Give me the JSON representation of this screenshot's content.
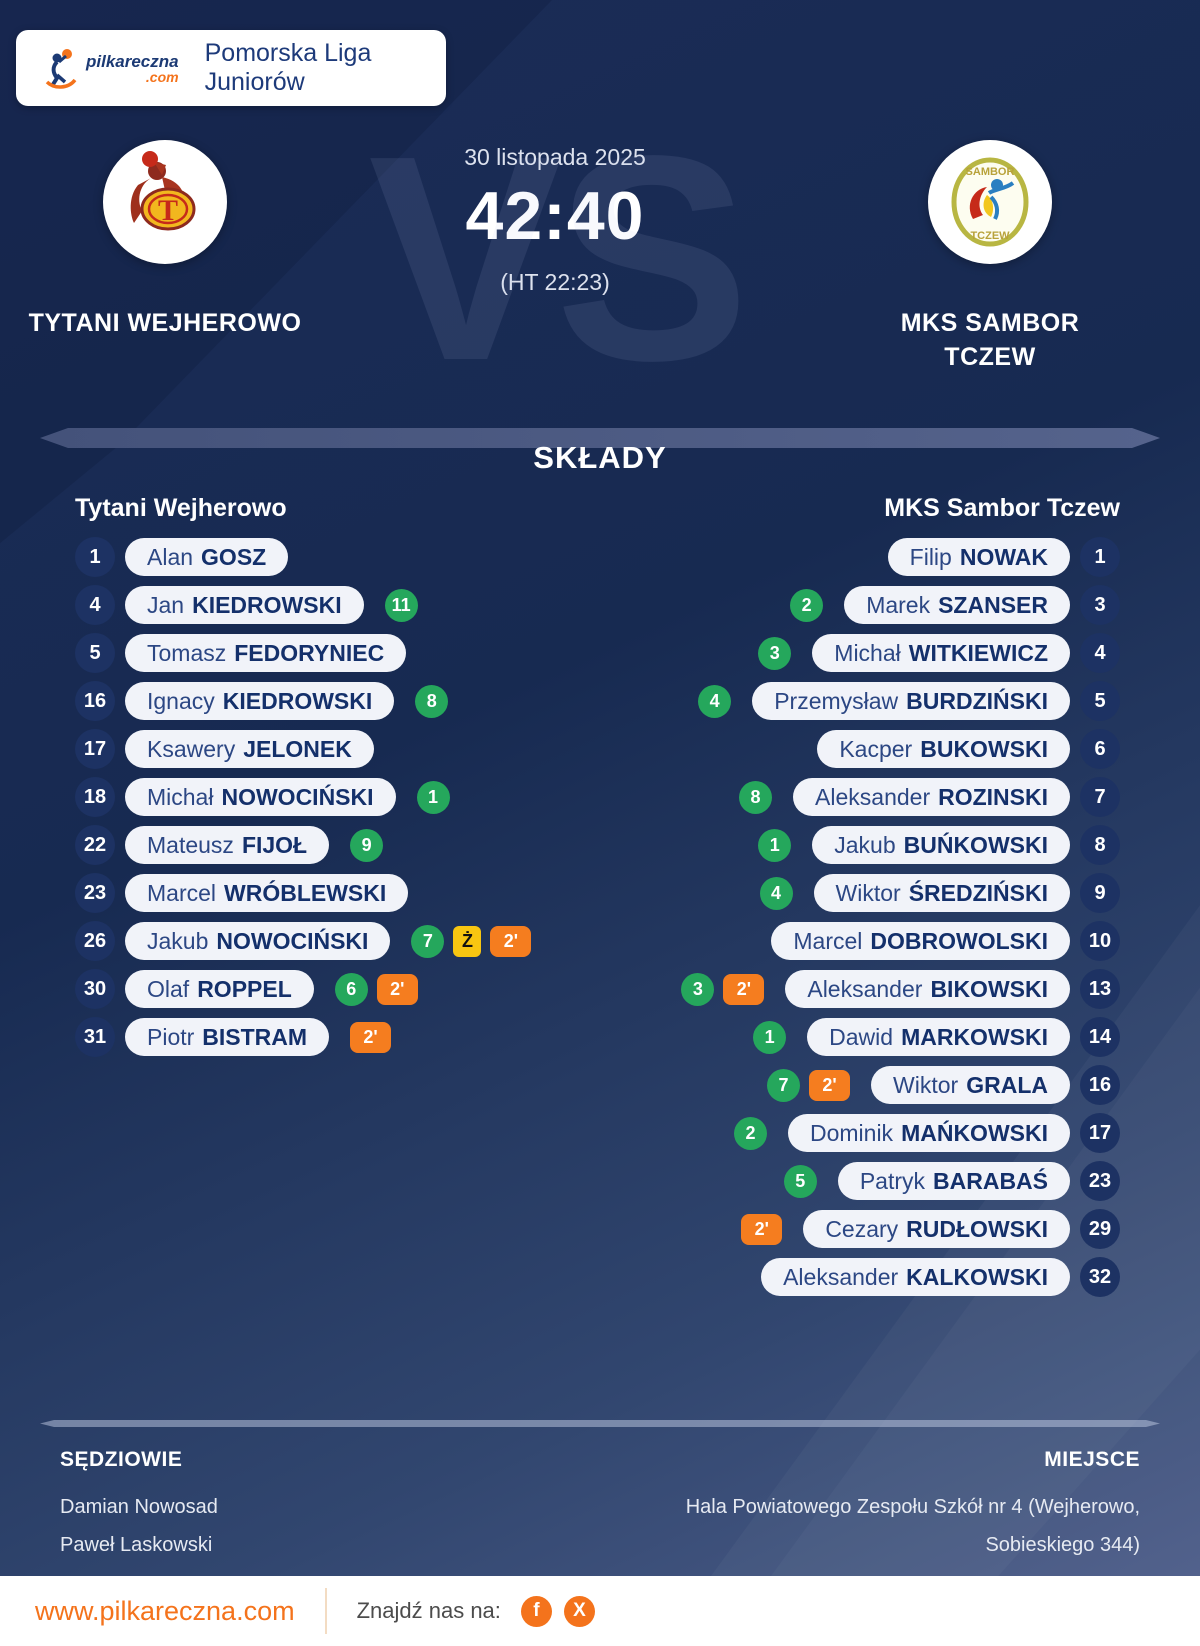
{
  "header": {
    "league": "Pomorska Liga Juniorów",
    "logo_main": "pilkareczna",
    "logo_tld": ".com"
  },
  "match": {
    "date": "30 listopada 2025",
    "score": "42:40",
    "halftime": "(HT 22:23)",
    "vs_watermark": "VS",
    "home_name": "TYTANI WEJHEROWO",
    "away_name_line1": "MKS SAMBOR",
    "away_name_line2": "TCZEW"
  },
  "lineups": {
    "title": "SKŁADY",
    "home": {
      "team": "Tytani Wejherowo",
      "players": [
        {
          "number": "1",
          "first": "Alan",
          "last": "GOSZ",
          "goals": null,
          "yellow": false,
          "susp": false
        },
        {
          "number": "4",
          "first": "Jan",
          "last": "KIEDROWSKI",
          "goals": "11",
          "yellow": false,
          "susp": false
        },
        {
          "number": "5",
          "first": "Tomasz",
          "last": "FEDORYNIEC",
          "goals": null,
          "yellow": false,
          "susp": false
        },
        {
          "number": "16",
          "first": "Ignacy",
          "last": "KIEDROWSKI",
          "goals": "8",
          "yellow": false,
          "susp": false
        },
        {
          "number": "17",
          "first": "Ksawery",
          "last": "JELONEK",
          "goals": null,
          "yellow": false,
          "susp": false
        },
        {
          "number": "18",
          "first": "Michał",
          "last": "NOWOCIŃSKI",
          "goals": "1",
          "yellow": false,
          "susp": false
        },
        {
          "number": "22",
          "first": "Mateusz",
          "last": "FIJOŁ",
          "goals": "9",
          "yellow": false,
          "susp": false
        },
        {
          "number": "23",
          "first": "Marcel",
          "last": "WRÓBLEWSKI",
          "goals": null,
          "yellow": false,
          "susp": false
        },
        {
          "number": "26",
          "first": "Jakub",
          "last": "NOWOCIŃSKI",
          "goals": "7",
          "yellow": true,
          "susp": true
        },
        {
          "number": "30",
          "first": "Olaf",
          "last": "ROPPEL",
          "goals": "6",
          "yellow": false,
          "susp": true
        },
        {
          "number": "31",
          "first": "Piotr",
          "last": "BISTRAM",
          "goals": null,
          "yellow": false,
          "susp": true
        }
      ]
    },
    "away": {
      "team": "MKS Sambor Tczew",
      "players": [
        {
          "number": "1",
          "first": "Filip",
          "last": "NOWAK",
          "goals": null,
          "yellow": false,
          "susp": false
        },
        {
          "number": "3",
          "first": "Marek",
          "last": "SZANSER",
          "goals": "2",
          "yellow": false,
          "susp": false
        },
        {
          "number": "4",
          "first": "Michał",
          "last": "WITKIEWICZ",
          "goals": "3",
          "yellow": false,
          "susp": false
        },
        {
          "number": "5",
          "first": "Przemysław",
          "last": "BURDZIŃSKI",
          "goals": "4",
          "yellow": false,
          "susp": false
        },
        {
          "number": "6",
          "first": "Kacper",
          "last": "BUKOWSKI",
          "goals": null,
          "yellow": false,
          "susp": false
        },
        {
          "number": "7",
          "first": "Aleksander",
          "last": "ROZINSKI",
          "goals": "8",
          "yellow": false,
          "susp": false
        },
        {
          "number": "8",
          "first": "Jakub",
          "last": "BUŃKOWSKI",
          "goals": "1",
          "yellow": false,
          "susp": false
        },
        {
          "number": "9",
          "first": "Wiktor",
          "last": "ŚREDZIŃSKI",
          "goals": "4",
          "yellow": false,
          "susp": false
        },
        {
          "number": "10",
          "first": "Marcel",
          "last": "DOBROWOLSKI",
          "goals": null,
          "yellow": false,
          "susp": false
        },
        {
          "number": "13",
          "first": "Aleksander",
          "last": "BIKOWSKI",
          "goals": "3",
          "yellow": false,
          "susp": true
        },
        {
          "number": "14",
          "first": "Dawid",
          "last": "MARKOWSKI",
          "goals": "1",
          "yellow": false,
          "susp": false
        },
        {
          "number": "16",
          "first": "Wiktor",
          "last": "GRALA",
          "goals": "7",
          "yellow": false,
          "susp": true
        },
        {
          "number": "17",
          "first": "Dominik",
          "last": "MAŃKOWSKI",
          "goals": "2",
          "yellow": false,
          "susp": false
        },
        {
          "number": "23",
          "first": "Patryk",
          "last": "BARABAŚ",
          "goals": "5",
          "yellow": false,
          "susp": false
        },
        {
          "number": "29",
          "first": "Cezary",
          "last": "RUDŁOWSKI",
          "goals": null,
          "yellow": false,
          "susp": true
        },
        {
          "number": "32",
          "first": "Aleksander",
          "last": "KALKOWSKI",
          "goals": null,
          "yellow": false,
          "susp": false
        }
      ]
    }
  },
  "badges": {
    "susp_label": "2'",
    "yellow_label": "Ż"
  },
  "colors": {
    "goals": "#25a75c",
    "suspension": "#f57d1f",
    "yellow_card": "#f8c611",
    "accent_orange": "#f4731c",
    "navy": "#14306b"
  },
  "info": {
    "referees_label": "SĘDZIOWIE",
    "referees": [
      "Damian Nowosad",
      "Paweł Laskowski"
    ],
    "venue_label": "MIEJSCE",
    "venue_lines": [
      "Hala Powiatowego Zespołu Szkół nr 4 (Wejherowo,",
      "Sobieskiego 344)"
    ]
  },
  "footer": {
    "url": "www.pilkareczna.com",
    "find_us": "Znajdź nas na:",
    "social": [
      {
        "name": "facebook-icon",
        "glyph": "f"
      },
      {
        "name": "x-icon",
        "glyph": "X"
      }
    ]
  }
}
